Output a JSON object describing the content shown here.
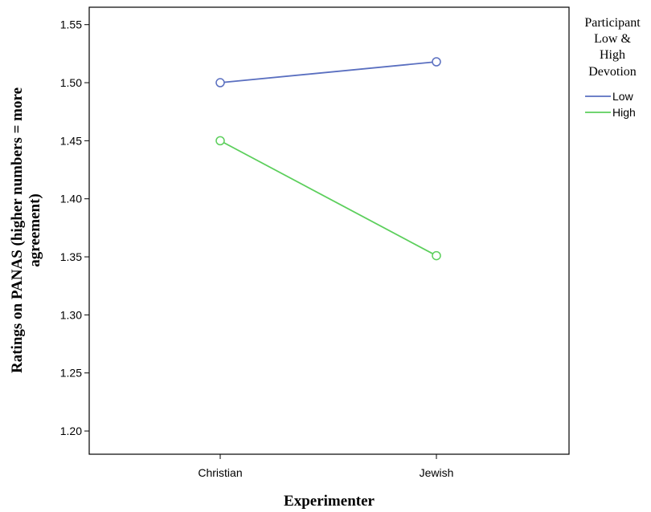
{
  "chart_data": {
    "type": "line",
    "title": "",
    "xlabel": "Experimenter",
    "ylabel_lines": [
      "Ratings on PANAS (higher numbers = more",
      "agreement)"
    ],
    "categories": [
      "Christian",
      "Jewish"
    ],
    "ylim": [
      1.18,
      1.565
    ],
    "yticks": [
      "1.20",
      "1.25",
      "1.30",
      "1.35",
      "1.40",
      "1.45",
      "1.50",
      "1.55"
    ],
    "grid": false,
    "legend": {
      "title_lines": [
        "Participant",
        "Low &",
        "High",
        "Devotion"
      ],
      "placement": "right"
    },
    "series": [
      {
        "name": "Low",
        "values": [
          1.5,
          1.518
        ],
        "color": "#5a6fc0"
      },
      {
        "name": "High",
        "values": [
          1.45,
          1.351
        ],
        "color": "#5ccf5c"
      }
    ]
  }
}
